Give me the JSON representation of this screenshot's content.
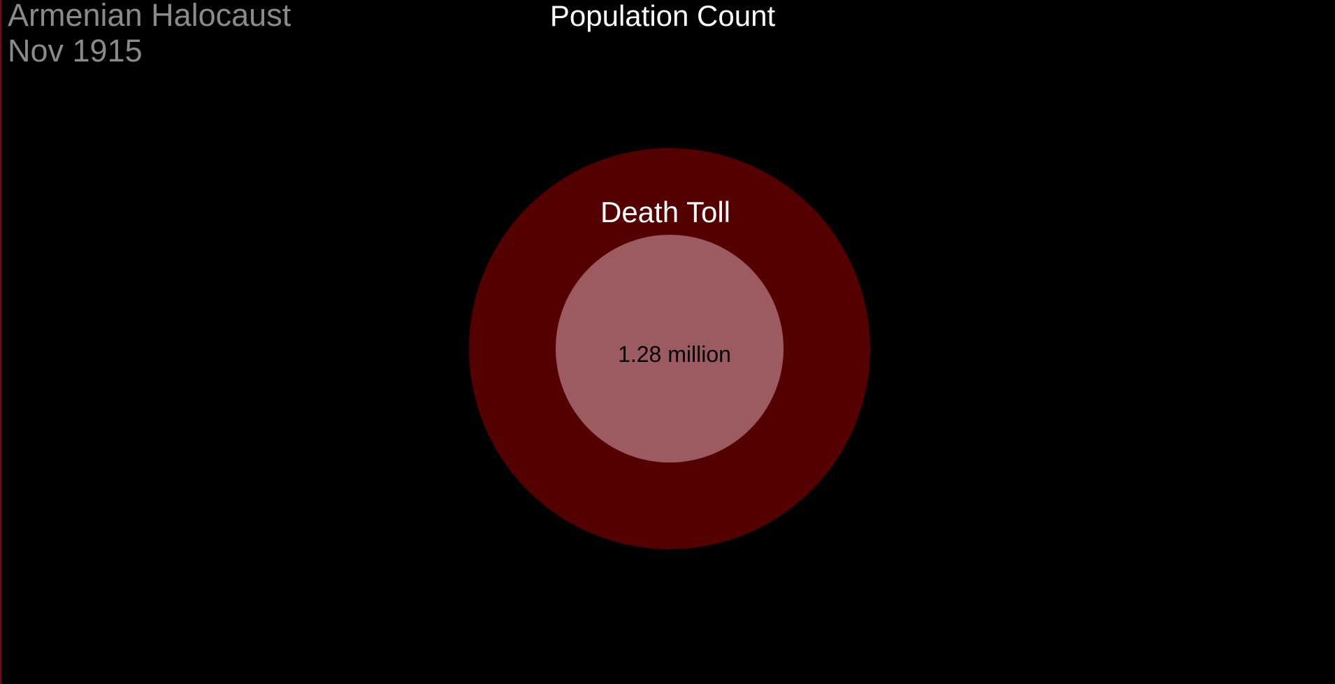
{
  "header": {
    "title": "Armenian Halocaust",
    "date": "Nov 1915"
  },
  "chart_data": {
    "type": "nested-circle",
    "title": "Population Count",
    "inner_label": "Death Toll",
    "inner_value_label": "1.28 million",
    "inner_value": 1.28,
    "unit": "million",
    "colors": {
      "outer": "#550000",
      "inner": "#9c5a61",
      "background": "#000000",
      "title_text": "#ffffff",
      "value_text": "#000000"
    }
  }
}
